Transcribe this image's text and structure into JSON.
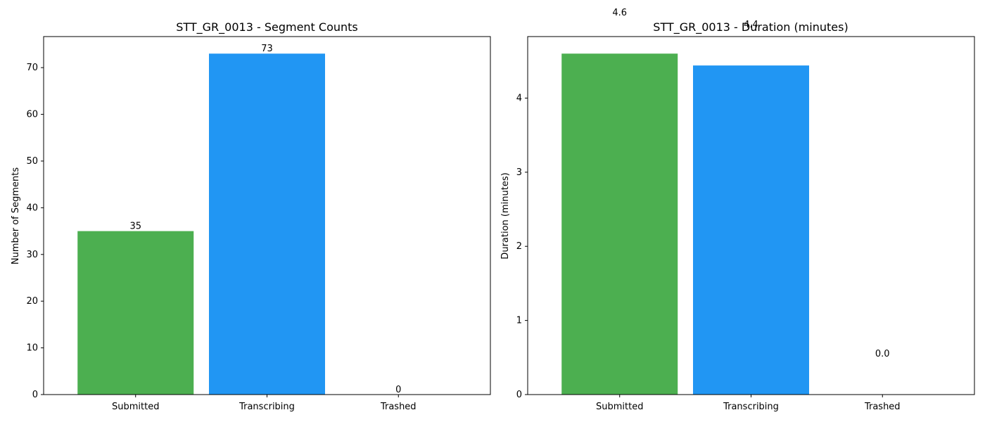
{
  "colors": {
    "submitted": "#4caf50",
    "transcribing": "#2196f3",
    "trashed": "#f44336"
  },
  "chart_data": [
    {
      "type": "bar",
      "title": "STT_GR_0013 - Segment Counts",
      "xlabel": "",
      "ylabel": "Number of Segments",
      "categories": [
        "Submitted",
        "Transcribing",
        "Trashed"
      ],
      "values": [
        35,
        73,
        0
      ],
      "value_labels": [
        "35",
        "73",
        "0"
      ],
      "ylim": [
        0,
        76.65
      ],
      "yticks": [
        0,
        10,
        20,
        30,
        40,
        50,
        60,
        70
      ],
      "grid": false
    },
    {
      "type": "bar",
      "title": "STT_GR_0013 - Duration (minutes)",
      "xlabel": "",
      "ylabel": "Duration (minutes)",
      "categories": [
        "Submitted",
        "Transcribing",
        "Trashed"
      ],
      "values": [
        4.6,
        4.44,
        0
      ],
      "value_labels": [
        "4.6",
        "4.4",
        "0.0"
      ],
      "ylim": [
        0,
        4.83
      ],
      "yticks": [
        0,
        1,
        2,
        3,
        4
      ],
      "grid": false
    }
  ]
}
